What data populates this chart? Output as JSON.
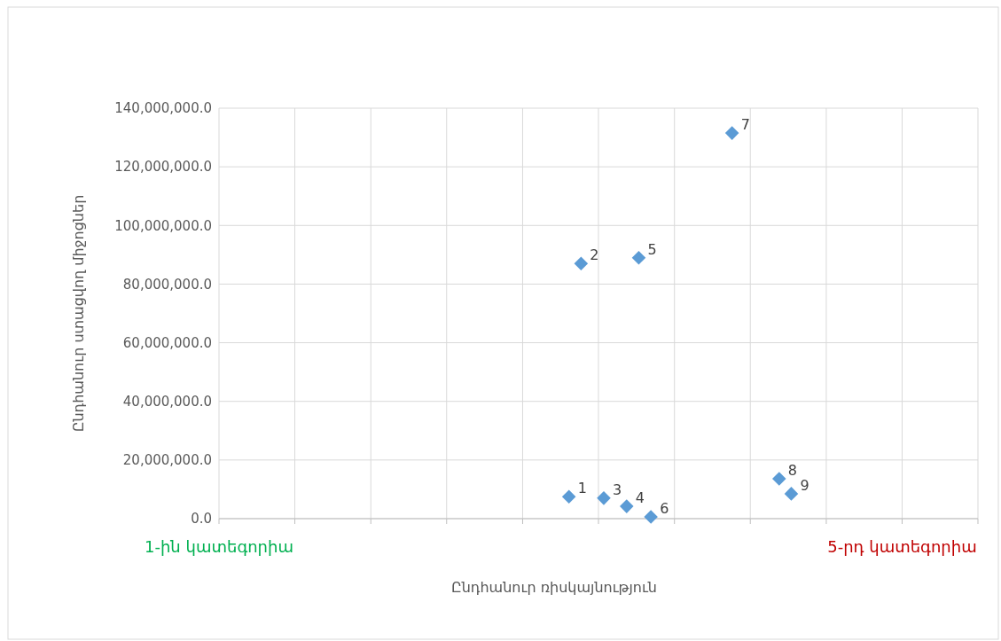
{
  "chart_data": {
    "type": "scatter",
    "xlabel": "Ընդհանուր ռիսկայնություն",
    "ylabel": "Ընդհանուր ստացվող միջոցներ",
    "x": [
      3.049,
      3.12,
      3.253,
      3.387,
      3.458,
      3.529,
      4.004,
      4.28,
      4.351
    ],
    "series": [
      {
        "color": "#5b9bd5",
        "values": [
          7500000,
          87000000,
          7000000,
          4200000,
          89000000,
          600000,
          131500000,
          13600000,
          8500000
        ]
      }
    ],
    "xlim": [
      1,
      5.444
    ],
    "xticks": [
      {
        "value": 1,
        "label": "1-ին կատեգորիա"
      },
      {
        "value": 1.444,
        "label": null
      },
      {
        "value": 1.889,
        "label": null
      },
      {
        "value": 2.333,
        "label": null
      },
      {
        "value": 2.778,
        "label": null
      },
      {
        "value": 3.222,
        "label": null
      },
      {
        "value": 3.667,
        "label": null
      },
      {
        "value": 4.111,
        "label": null
      },
      {
        "value": 4.556,
        "label": null
      },
      {
        "value": 5,
        "label": "5-րդ կատեգորիա"
      },
      {
        "value": 5.444,
        "label": null
      }
    ],
    "ylim": [
      0,
      140000000
    ],
    "yticks": [
      {
        "value": 0,
        "label": "0.0"
      },
      {
        "value": 20000000,
        "label": "20,000,000.0"
      },
      {
        "value": 40000000,
        "label": "40,000,000.0"
      },
      {
        "value": 60000000,
        "label": "60,000,000.0"
      },
      {
        "value": 80000000,
        "label": "80,000,000.0"
      },
      {
        "value": 100000000,
        "label": "100,000,000.0"
      },
      {
        "value": 120000000,
        "label": "120,000,000.0"
      },
      {
        "value": 140000000,
        "label": "140,000,000.0"
      }
    ],
    "annotations": [
      {
        "text": "1",
        "x": 3.049,
        "y": 7500000
      },
      {
        "text": "2",
        "x": 3.12,
        "y": 87000000
      },
      {
        "text": "3",
        "x": 3.253,
        "y": 7000000
      },
      {
        "text": "4",
        "x": 3.387,
        "y": 4200000
      },
      {
        "text": "5",
        "x": 3.458,
        "y": 89000000
      },
      {
        "text": "6",
        "x": 3.529,
        "y": 600000
      },
      {
        "text": "7",
        "x": 4.004,
        "y": 131500000
      },
      {
        "text": "8",
        "x": 4.28,
        "y": 13600000
      },
      {
        "text": "9",
        "x": 4.351,
        "y": 8500000
      }
    ],
    "grid": true,
    "marker": "diamond"
  }
}
